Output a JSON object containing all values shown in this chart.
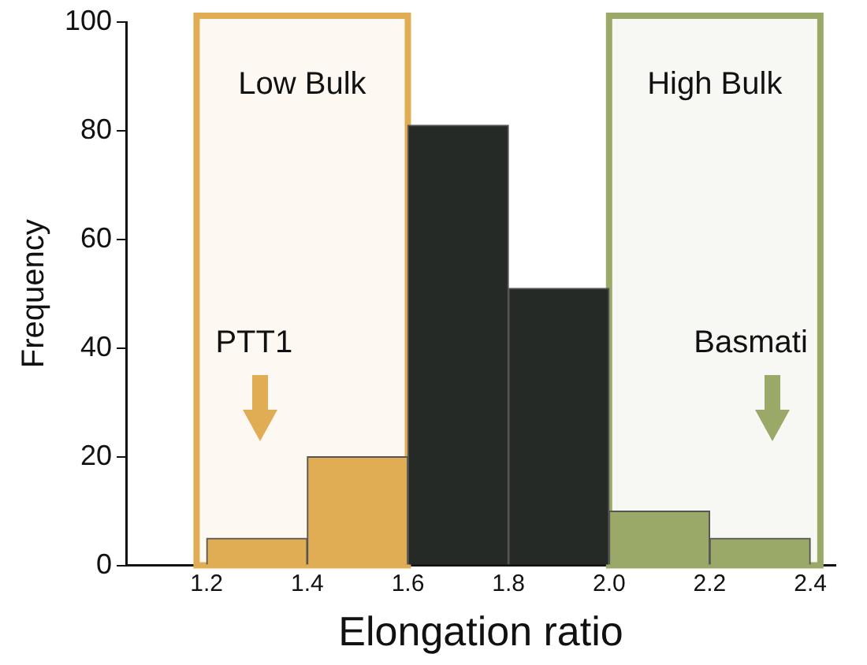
{
  "chart_data": {
    "type": "histogram",
    "xlabel": "Elongation ratio",
    "ylabel": "Frequency",
    "bins": [
      1.2,
      1.4,
      1.6,
      1.8,
      2.0,
      2.2,
      2.4
    ],
    "values": [
      5,
      20,
      81,
      51,
      10,
      5
    ],
    "colors": [
      "#e0ad55",
      "#e0ad55",
      "#262a27",
      "#262a27",
      "#9aa868",
      "#9aa868"
    ],
    "xlim": [
      1.04,
      2.45
    ],
    "xticks": [
      1.2,
      1.4,
      1.6,
      1.8,
      {
        "value": 2.0,
        "label": "2.0"
      },
      2.2,
      2.4
    ],
    "ylim": [
      0,
      100
    ],
    "yticks": [
      0,
      20,
      40,
      60,
      80,
      100
    ],
    "grid": false,
    "legend": false,
    "bands": [
      {
        "axis": "x",
        "from": 1.18,
        "to": 1.6,
        "label": "Low Bulk",
        "color": "#e0ad55"
      },
      {
        "axis": "x",
        "from": 2.0,
        "to": 2.42,
        "label": "High Bulk",
        "color": "#9aa868"
      }
    ],
    "annotations": [
      "PTT1",
      "Basmati"
    ]
  }
}
